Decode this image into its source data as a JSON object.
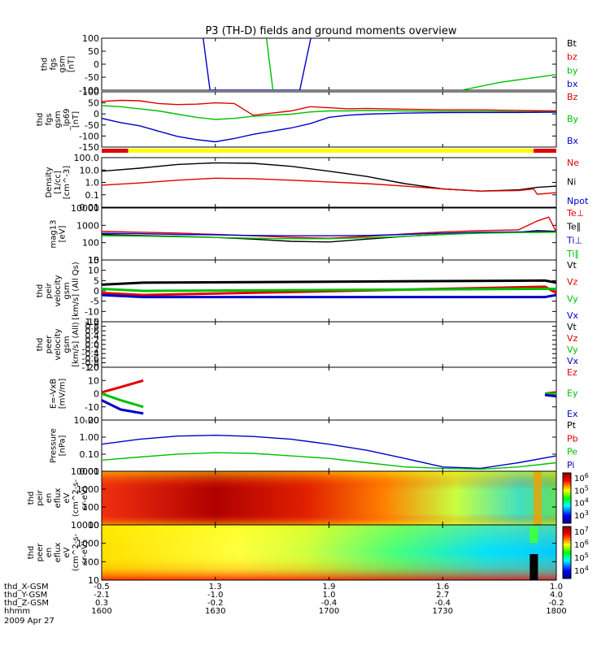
{
  "title": "P3 (TH-D) fields and ground moments overview",
  "colors": {
    "black": "#000000",
    "red": "#e00000",
    "green": "#00c000",
    "blue": "#0000c8",
    "yellow": "#ffff00",
    "frame": "#000000"
  },
  "panels": [
    {
      "key": "fgs",
      "ylabel": [
        "thd",
        "fgs",
        "gsm",
        "[nT]"
      ],
      "ticks": [
        "100",
        "50",
        "0",
        "-50",
        "-100"
      ],
      "legend": [
        {
          "text": "Bt",
          "color": "black"
        },
        {
          "text": "bz",
          "color": "red"
        },
        {
          "text": "by",
          "color": "green"
        },
        {
          "text": "bx",
          "color": "blue"
        }
      ]
    },
    {
      "key": "fgs_lp",
      "ylabel": [
        "thd",
        "fgs",
        "gsm",
        "_lp69",
        "[nT]"
      ],
      "ticks": [
        "100",
        "50",
        "0",
        "-50",
        "-100",
        "-150"
      ],
      "legend": [
        {
          "text": "Bz",
          "color": "red"
        },
        {
          "text": "By",
          "color": "green"
        },
        {
          "text": "Bx",
          "color": "blue"
        }
      ]
    },
    {
      "key": "density",
      "ylabel": [
        "Density",
        "[1/cc]",
        "[cm^-3]"
      ],
      "ticks": [
        "100.0",
        "10.0",
        "1.0",
        "0.1",
        "0.01"
      ],
      "legend": [
        {
          "text": "Ne",
          "color": "red"
        },
        {
          "text": "Ni",
          "color": "black"
        },
        {
          "text": "Npot",
          "color": "blue"
        }
      ]
    },
    {
      "key": "temperature",
      "ylabel": [
        "mag13",
        "[eV]"
      ],
      "ticks": [
        "10000",
        "1000",
        "100",
        "10"
      ],
      "legend": [
        {
          "text": "Te⊥",
          "color": "red"
        },
        {
          "text": "Te∥",
          "color": "black"
        },
        {
          "text": "Ti⊥",
          "color": "blue"
        },
        {
          "text": "Ti∥",
          "color": "green"
        }
      ]
    },
    {
      "key": "peir_velocity",
      "ylabel": [
        "thd",
        "peir",
        "velocity",
        "gsm",
        "[km/s] (All Qs)"
      ],
      "ticks": [
        "15",
        "10",
        "5",
        "0",
        "-5",
        "-10",
        "-15"
      ],
      "legend": [
        {
          "text": "Vt",
          "color": "black"
        },
        {
          "text": "Vz",
          "color": "red"
        },
        {
          "text": "Vy",
          "color": "green"
        },
        {
          "text": "Vx",
          "color": "blue"
        }
      ]
    },
    {
      "key": "peer_velocity",
      "ylabel": [
        "thd",
        "peer",
        "velocity",
        "gsm",
        "[km/s] (All)"
      ],
      "ticks": [
        "1.0",
        "0.8",
        "0.6",
        "0.4",
        "0.2",
        "0.0",
        "-0.2",
        "-0.4",
        "-0.6",
        "-0.8",
        "-1.0"
      ],
      "legend": [
        {
          "text": "Vt",
          "color": "black"
        },
        {
          "text": "Vz",
          "color": "red"
        },
        {
          "text": "Vy",
          "color": "green"
        },
        {
          "text": "Vx",
          "color": "blue"
        }
      ]
    },
    {
      "key": "efield",
      "ylabel": [
        "E=-VxB",
        "[mV/m]"
      ],
      "ticks": [
        "20",
        "10",
        "0",
        "-10",
        "-20"
      ],
      "legend": [
        {
          "text": "Ez",
          "color": "red"
        },
        {
          "text": "Ey",
          "color": "green"
        },
        {
          "text": "Ex",
          "color": "blue"
        }
      ]
    },
    {
      "key": "pressure",
      "ylabel": [
        "Pressure",
        "[nPa]"
      ],
      "ticks": [
        "10.00",
        "1.00",
        "0.10",
        "0.01"
      ],
      "legend": [
        {
          "text": "Pt",
          "color": "black"
        },
        {
          "text": "Pb",
          "color": "red"
        },
        {
          "text": "Pe",
          "color": "green"
        },
        {
          "text": "Pi",
          "color": "blue"
        }
      ]
    },
    {
      "key": "peir_spec",
      "ylabel": [
        "thd",
        "peir",
        "en",
        "eflux",
        "eV",
        "(cm^2-s-",
        "sr-eV)"
      ],
      "ticks": [
        "10000",
        "1000",
        "100",
        "10"
      ],
      "colorbar_ticks": [
        "10^6",
        "10^5",
        "10^4",
        "10^3"
      ]
    },
    {
      "key": "peer_spec",
      "ylabel": [
        "thd",
        "peer",
        "en",
        "eflux",
        "eV",
        "(cm^2-s-",
        "sr-eV)"
      ],
      "ticks": [
        "10000",
        "1000",
        "100",
        "10"
      ],
      "colorbar_ticks": [
        "10^7",
        "10^6",
        "10^5",
        "10^4"
      ]
    }
  ],
  "xaxis": {
    "rows": [
      {
        "label": "thd_X-GSM",
        "values": [
          "-0.5",
          "1.3",
          "1.9",
          "1.6",
          "1.0"
        ]
      },
      {
        "label": "thd_Y-GSM",
        "values": [
          "-2.1",
          "-1.0",
          "1.0",
          "2.7",
          "4.0"
        ]
      },
      {
        "label": "thd_Z-GSM",
        "values": [
          "0.3",
          "-0.2",
          "-0.4",
          "-0.4",
          "-0.2"
        ]
      },
      {
        "label": "hhmm",
        "values": [
          "1600",
          "1630",
          "1700",
          "1730",
          "1800"
        ]
      }
    ],
    "date": "2009 Apr 27"
  },
  "chart_data": {
    "type": "line",
    "title": "P3 (TH-D) fields and ground moments overview",
    "x_unit": "hhmm",
    "x_ticks": [
      "1600",
      "1630",
      "1700",
      "1730",
      "1800"
    ],
    "date": "2009 Apr 27",
    "fgs": {
      "ylim": [
        -100,
        100
      ],
      "series": [
        {
          "name": "bx",
          "x": [
            1626.8,
            1628.6,
            1652.3,
            1655.2
          ],
          "values": [
            100,
            -100,
            -100,
            100
          ]
        },
        {
          "name": "by",
          "x": [
            1643.5,
            1645.2
          ],
          "values": [
            100,
            -100
          ]
        },
        {
          "name": "by",
          "x": [
            1735.0,
            1745,
            1800
          ],
          "values": [
            -100,
            -70,
            -40
          ]
        }
      ]
    },
    "fgs_lp": {
      "ylim": [
        -160,
        100
      ],
      "series": [
        {
          "name": "Bz",
          "x": [
            1600,
            1605,
            1610,
            1615,
            1620,
            1625,
            1630,
            1635,
            1640,
            1645,
            1650,
            1655,
            1700,
            1705,
            1710,
            1720,
            1730,
            1740,
            1750,
            1800
          ],
          "values": [
            55,
            60,
            58,
            45,
            40,
            42,
            48,
            45,
            -10,
            0,
            10,
            30,
            25,
            20,
            22,
            18,
            15,
            15,
            12,
            10
          ]
        },
        {
          "name": "By",
          "x": [
            1600,
            1605,
            1610,
            1615,
            1620,
            1625,
            1630,
            1635,
            1640,
            1645,
            1650,
            1655,
            1700,
            1705,
            1710,
            1720,
            1730,
            1740,
            1750,
            1800
          ],
          "values": [
            35,
            30,
            20,
            10,
            -5,
            -20,
            -30,
            -25,
            -15,
            -10,
            -5,
            5,
            10,
            10,
            12,
            10,
            8,
            8,
            6,
            5
          ]
        },
        {
          "name": "Bx",
          "x": [
            1600,
            1605,
            1610,
            1615,
            1620,
            1625,
            1630,
            1635,
            1640,
            1645,
            1650,
            1655,
            1700,
            1705,
            1710,
            1720,
            1730,
            1740,
            1750,
            1800
          ],
          "values": [
            -25,
            -45,
            -60,
            -85,
            -110,
            -125,
            -135,
            -120,
            -100,
            -85,
            -70,
            -50,
            -20,
            -10,
            -5,
            0,
            2,
            3,
            3,
            4
          ]
        }
      ],
      "status_bar": [
        {
          "from": 1600,
          "to": 1607,
          "color": "red"
        },
        {
          "from": 1607,
          "to": 1754,
          "color": "yellow"
        },
        {
          "from": 1754,
          "to": 1800,
          "color": "red"
        }
      ]
    },
    "density": {
      "ylim": [
        0.01,
        100
      ],
      "scale": "log",
      "series": [
        {
          "name": "Ni",
          "x": [
            1600,
            1610,
            1620,
            1630,
            1640,
            1650,
            1700,
            1710,
            1720,
            1730,
            1740,
            1750,
            1755,
            1800
          ],
          "values": [
            8,
            14,
            28,
            38,
            35,
            20,
            8,
            3,
            0.8,
            0.3,
            0.2,
            0.25,
            0.4,
            0.5
          ]
        },
        {
          "name": "Ne",
          "x": [
            1600,
            1610,
            1620,
            1630,
            1640,
            1650,
            1700,
            1710,
            1720,
            1730,
            1740,
            1750,
            1754,
            1755,
            1800
          ],
          "values": [
            0.6,
            0.9,
            1.5,
            2.2,
            2,
            1.5,
            1.1,
            0.8,
            0.5,
            0.3,
            0.2,
            0.22,
            0.3,
            0.11,
            0.15
          ]
        }
      ]
    },
    "temperature": {
      "ylim": [
        10,
        10000
      ],
      "scale": "log",
      "series": [
        {
          "name": "Te∥",
          "x": [
            1600,
            1610,
            1620,
            1630,
            1640,
            1650,
            1700,
            1710,
            1720,
            1730,
            1740,
            1750,
            1755,
            1800
          ],
          "values": [
            300,
            260,
            230,
            200,
            160,
            120,
            110,
            160,
            230,
            300,
            380,
            400,
            500,
            450
          ]
        },
        {
          "name": "Te⊥",
          "x": [
            1600,
            1610,
            1620,
            1630,
            1640,
            1650,
            1700,
            1710,
            1720,
            1730,
            1740,
            1750,
            1755,
            1758,
            1800
          ],
          "values": [
            450,
            400,
            360,
            300,
            250,
            200,
            180,
            230,
            320,
            420,
            500,
            550,
            1800,
            3000,
            400
          ]
        },
        {
          "name": "Ti⊥",
          "x": [
            1600,
            1610,
            1620,
            1630,
            1640,
            1650,
            1700,
            1710,
            1720,
            1730,
            1740,
            1750,
            1800
          ],
          "values": [
            350,
            330,
            300,
            280,
            260,
            250,
            250,
            260,
            300,
            350,
            400,
            420,
            430
          ]
        },
        {
          "name": "Ti∥",
          "x": [
            1600,
            1610,
            1620,
            1630,
            1640,
            1650,
            1700,
            1710,
            1720,
            1730,
            1740,
            1750,
            1800
          ],
          "values": [
            250,
            240,
            220,
            200,
            180,
            170,
            170,
            190,
            230,
            300,
            350,
            380,
            400
          ]
        }
      ]
    },
    "peir_velocity": {
      "ylim": [
        -15,
        15
      ],
      "series": [
        {
          "name": "Vt",
          "x": [
            1600,
            1611,
            1757,
            1800
          ],
          "values": [
            3,
            4,
            5,
            4
          ]
        },
        {
          "name": "Vz",
          "x": [
            1600,
            1611,
            1757,
            1800
          ],
          "values": [
            -1,
            -2,
            2,
            -1
          ]
        },
        {
          "name": "Vy",
          "x": [
            1600,
            1611,
            1757,
            1800
          ],
          "values": [
            1,
            0,
            1,
            1
          ]
        },
        {
          "name": "Vx",
          "x": [
            1600,
            1611,
            1757,
            1800
          ],
          "values": [
            -2,
            -3,
            -3,
            -2
          ]
        }
      ]
    },
    "peer_velocity": {
      "ylim": [
        -1.0,
        1.0
      ],
      "series": []
    },
    "efield": {
      "ylim": [
        -20,
        20
      ],
      "series": [
        {
          "name": "Ez",
          "x": [
            1600,
            1605,
            1611
          ],
          "values": [
            1,
            5,
            10
          ]
        },
        {
          "name": "Ey",
          "x": [
            1600,
            1605,
            1611
          ],
          "values": [
            0,
            -5,
            -10
          ]
        },
        {
          "name": "Ex",
          "x": [
            1600,
            1605,
            1611
          ],
          "values": [
            -5,
            -12,
            -15
          ]
        },
        {
          "name": "Ez",
          "x": [
            1757,
            1800
          ],
          "values": [
            0,
            1
          ]
        },
        {
          "name": "Ey",
          "x": [
            1757,
            1800
          ],
          "values": [
            0,
            0
          ]
        },
        {
          "name": "Ex",
          "x": [
            1757,
            1800
          ],
          "values": [
            -1,
            -2
          ]
        }
      ]
    },
    "pressure": {
      "ylim": [
        0.005,
        20
      ],
      "scale": "log",
      "series": [
        {
          "name": "Pi",
          "x": [
            1600,
            1610,
            1620,
            1630,
            1640,
            1650,
            1700,
            1710,
            1720,
            1730,
            1740,
            1750,
            1800
          ],
          "values": [
            0.4,
            0.9,
            1.5,
            1.7,
            1.4,
            0.9,
            0.4,
            0.15,
            0.04,
            0.01,
            0.008,
            0.02,
            0.06
          ]
        },
        {
          "name": "Pe",
          "x": [
            1600,
            1610,
            1620,
            1630,
            1640,
            1650,
            1700,
            1710,
            1720,
            1730,
            1740,
            1750,
            1800
          ],
          "values": [
            0.03,
            0.05,
            0.08,
            0.1,
            0.09,
            0.06,
            0.04,
            0.02,
            0.01,
            0.008,
            0.007,
            0.01,
            0.02
          ]
        }
      ]
    },
    "peir_spec": {
      "type": "heatmap",
      "ylim": [
        5,
        20000
      ],
      "scale": "log",
      "colorbar_range": [
        500,
        3000000
      ]
    },
    "peer_spec": {
      "type": "heatmap",
      "ylim": [
        5,
        20000
      ],
      "scale": "log",
      "colorbar_range": [
        5000,
        20000000
      ]
    }
  }
}
